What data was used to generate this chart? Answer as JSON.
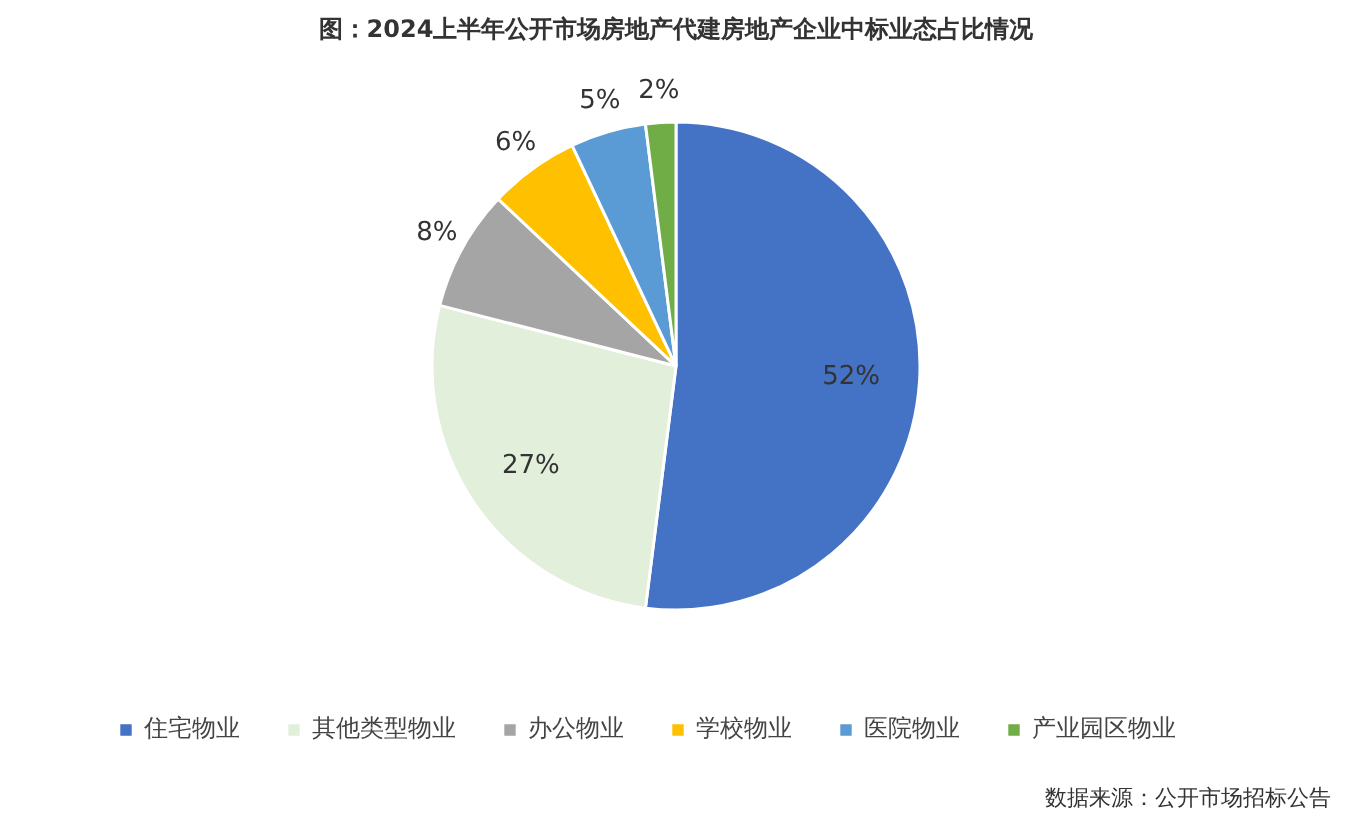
{
  "chart_data": {
    "type": "pie",
    "title": "图：2024上半年公开市场房地产代建房地产企业中标业态占比情况",
    "categories": [
      "住宅物业",
      "其他类型物业",
      "办公物业",
      "学校物业",
      "医院物业",
      "产业园区物业"
    ],
    "values": [
      52,
      27,
      8,
      6,
      5,
      2
    ],
    "colors": [
      "#4472c4",
      "#e2efda",
      "#a5a5a5",
      "#ffc000",
      "#5b9bd5",
      "#70ad47"
    ],
    "value_labels": [
      "52%",
      "27%",
      "8%",
      "6%",
      "5%",
      "2%"
    ],
    "legend": "bottom",
    "annotations": [
      "数据来源：公开市场招标公告"
    ]
  }
}
